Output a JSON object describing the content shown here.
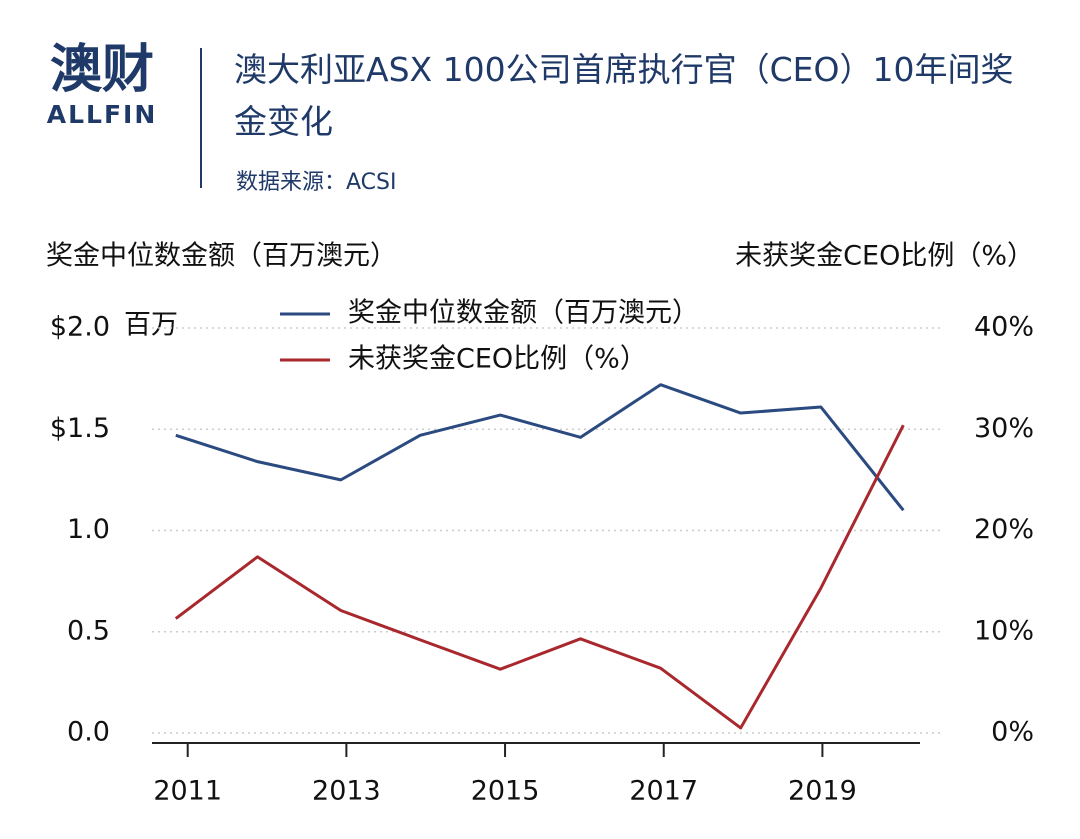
{
  "logo": {
    "text": "澳财",
    "subtext": "ALLFIN"
  },
  "chart_data": {
    "type": "line",
    "title": "澳大利亚ASX 100公司首席执行官（CEO）10年间奖金变化",
    "subtitle": "数据来源：ACSI",
    "y_label": "奖金中位数金额（百万澳元）",
    "y2_label": "未获奖金CEO比例（%）",
    "y_unit_note": "百万",
    "x": [
      2010.85,
      2011.88,
      2012.93,
      2013.93,
      2014.94,
      2015.95,
      2016.96,
      2017.97,
      2018.98,
      2020.02
    ],
    "xlim": [
      2010.55,
      2020.23
    ],
    "xticks": [
      2011,
      2013,
      2015,
      2017,
      2019
    ],
    "ylim": [
      0,
      2
    ],
    "yticks": [
      {
        "value": 0,
        "label": "0.0"
      },
      {
        "value": 0.5,
        "label": "0.5"
      },
      {
        "value": 1,
        "label": "1.0"
      },
      {
        "value": 1.5,
        "label": "$1.5"
      },
      {
        "value": 2,
        "label": "$2.0"
      }
    ],
    "y2lim": [
      0,
      40
    ],
    "y2ticks": [
      {
        "value": 0,
        "label": "0%"
      },
      {
        "value": 10,
        "label": "10%"
      },
      {
        "value": 20,
        "label": "20%"
      },
      {
        "value": 30,
        "label": "30%"
      },
      {
        "value": 40,
        "label": "40%"
      }
    ],
    "grid": true,
    "series": [
      {
        "name": "奖金中位数金额（百万澳元）",
        "color": "#2b4a80",
        "values": [
          1.47,
          1.34,
          1.25,
          1.47,
          1.57,
          1.46,
          1.72,
          1.58,
          1.61,
          1.1
        ]
      },
      {
        "name": "未获奖金CEO比例（%）",
        "color": "#a8282e",
        "axis": "y2",
        "values": [
          11.3,
          17.4,
          12.1,
          9.2,
          6.3,
          9.3,
          6.4,
          0.5,
          14.3,
          30.4
        ]
      }
    ]
  }
}
